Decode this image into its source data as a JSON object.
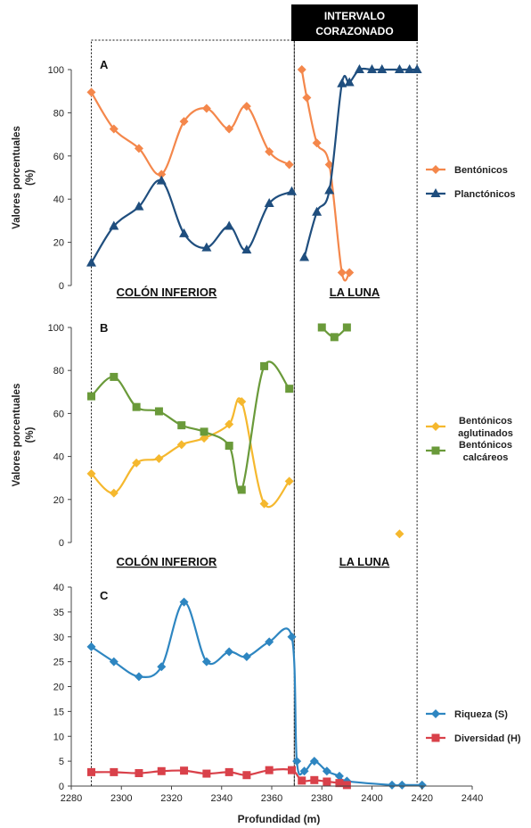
{
  "header": {
    "line1": "INTERVALO",
    "line2": "CORAZONADO"
  },
  "x_axis": {
    "label": "Profundidad (m)",
    "ticks": [
      2280,
      2300,
      2320,
      2340,
      2360,
      2380,
      2400,
      2420,
      2440
    ],
    "range": [
      2280,
      2440
    ]
  },
  "formations": {
    "left": "COLÓN INFERIOR",
    "right": "LA LUNA"
  },
  "intervals": {
    "left_box": [
      2288,
      2369
    ],
    "right_box": [
      2369,
      2418
    ]
  },
  "chart_data": [
    {
      "type": "line",
      "panel": "A",
      "ylabel_line1": "Valores porcentuales",
      "ylabel_line2": "(%)",
      "ylim": [
        0,
        100
      ],
      "yticks": [
        0,
        20,
        40,
        60,
        80,
        100
      ],
      "legend_position": "right",
      "series": [
        {
          "name": "Bentónicos",
          "color": "#f4874b",
          "marker": "diamond",
          "segments": [
            [
              [
                2288,
                89.5
              ],
              [
                2297,
                72.5
              ],
              [
                2307,
                63.5
              ],
              [
                2316,
                51.5
              ],
              [
                2325,
                76
              ],
              [
                2334,
                82
              ],
              [
                2343,
                72.5
              ],
              [
                2350,
                83
              ],
              [
                2359,
                62
              ],
              [
                2367,
                56
              ]
            ],
            [
              [
                2372,
                100
              ],
              [
                2374,
                87
              ],
              [
                2378,
                66
              ],
              [
                2383,
                56
              ],
              [
                2388,
                6
              ],
              [
                2391,
                6
              ]
            ]
          ]
        },
        {
          "name": "Planctónicos",
          "color": "#1f4e7e",
          "marker": "triangle",
          "segments": [
            [
              [
                2288,
                10.5
              ],
              [
                2297,
                27.5
              ],
              [
                2307,
                36.5
              ],
              [
                2316,
                48.5
              ],
              [
                2325,
                24
              ],
              [
                2334,
                17.5
              ],
              [
                2343,
                27.5
              ],
              [
                2350,
                16.5
              ],
              [
                2359,
                38
              ],
              [
                2368,
                43.5
              ]
            ],
            [
              [
                2373,
                13
              ],
              [
                2378,
                34
              ],
              [
                2383,
                44
              ],
              [
                2388,
                93.5
              ],
              [
                2391,
                94
              ],
              [
                2395,
                100
              ],
              [
                2400,
                100
              ],
              [
                2404,
                100
              ],
              [
                2411,
                100
              ],
              [
                2415,
                100
              ],
              [
                2418,
                100
              ]
            ]
          ]
        }
      ]
    },
    {
      "type": "line",
      "panel": "B",
      "ylabel_line1": "Valores porcentuales",
      "ylabel_line2": "(%)",
      "ylim": [
        0,
        100
      ],
      "yticks": [
        0,
        20,
        40,
        60,
        80,
        100
      ],
      "legend_position": "right",
      "series": [
        {
          "name": "Bentónicos aglutinados",
          "legend_line1": "Bentónicos",
          "legend_line2": "aglutinados",
          "color": "#f5b82e",
          "marker": "diamond",
          "segments": [
            [
              [
                2288,
                32
              ],
              [
                2297,
                23
              ],
              [
                2306,
                37
              ],
              [
                2315,
                39
              ],
              [
                2324,
                45.5
              ],
              [
                2333,
                48.5
              ],
              [
                2343,
                55
              ],
              [
                2348,
                65.5
              ],
              [
                2357,
                18
              ],
              [
                2367,
                28.5
              ]
            ],
            [
              [
                2411,
                4
              ]
            ]
          ]
        },
        {
          "name": "Bentónicos calcáreos",
          "legend_line1": "Bentónicos",
          "legend_line2": "calcáreos",
          "color": "#6a9a3a",
          "marker": "square",
          "segments": [
            [
              [
                2288,
                68
              ],
              [
                2297,
                77
              ],
              [
                2306,
                63
              ],
              [
                2315,
                61
              ],
              [
                2324,
                54.5
              ],
              [
                2333,
                51.5
              ],
              [
                2343,
                45
              ],
              [
                2348,
                24.5
              ],
              [
                2357,
                82
              ],
              [
                2367,
                71.5
              ]
            ],
            [
              [
                2380,
                100
              ],
              [
                2385,
                95.5
              ],
              [
                2390,
                100
              ]
            ]
          ]
        }
      ]
    },
    {
      "type": "line",
      "panel": "C",
      "ylabel_line1": "",
      "ylabel_line2": "",
      "ylim": [
        0,
        40
      ],
      "yticks": [
        0,
        5,
        10,
        15,
        20,
        25,
        30,
        35,
        40
      ],
      "legend_position": "right",
      "series": [
        {
          "name": "Riqueza (S)",
          "color": "#2e86c1",
          "marker": "diamond",
          "segments": [
            [
              [
                2288,
                28
              ],
              [
                2297,
                25
              ],
              [
                2307,
                22
              ],
              [
                2316,
                24
              ],
              [
                2325,
                37
              ],
              [
                2334,
                25
              ],
              [
                2343,
                27
              ],
              [
                2350,
                26
              ],
              [
                2359,
                29
              ],
              [
                2368,
                30
              ],
              [
                2370,
                5
              ],
              [
                2373,
                3
              ],
              [
                2377,
                5
              ],
              [
                2382,
                3
              ],
              [
                2387,
                2
              ],
              [
                2390,
                1
              ],
              [
                2408,
                0.2
              ],
              [
                2412,
                0.2
              ],
              [
                2420,
                0.2
              ]
            ]
          ]
        },
        {
          "name": "Diversidad (H)",
          "color": "#d9414a",
          "marker": "square",
          "segments": [
            [
              [
                2288,
                2.8
              ],
              [
                2297,
                2.8
              ],
              [
                2307,
                2.6
              ],
              [
                2316,
                3
              ],
              [
                2325,
                3.1
              ],
              [
                2334,
                2.5
              ],
              [
                2343,
                2.8
              ],
              [
                2350,
                2.2
              ],
              [
                2359,
                3.2
              ],
              [
                2368,
                3.2
              ],
              [
                2372,
                1.1
              ],
              [
                2377,
                1.2
              ],
              [
                2382,
                0.9
              ],
              [
                2387,
                0.6
              ],
              [
                2390,
                0.2
              ]
            ]
          ]
        }
      ]
    }
  ]
}
